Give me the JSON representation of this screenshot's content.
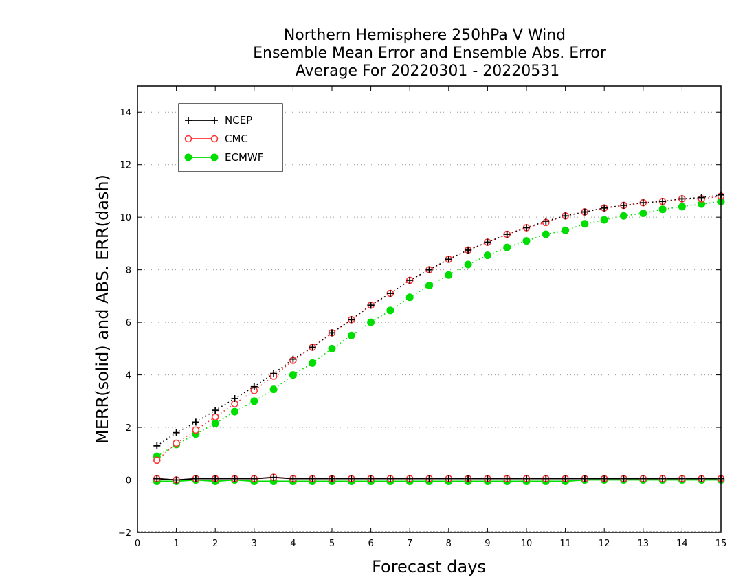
{
  "chart_data": {
    "type": "line",
    "title": [
      "Northern Hemisphere 250hPa V Wind",
      "Ensemble Mean Error and Ensemble Abs. Error",
      "Average For 20220301 - 20220531"
    ],
    "xlabel": "Forecast days",
    "ylabel": "MERR(solid) and ABS. ERR(dash)",
    "xlim": [
      0,
      15
    ],
    "ylim": [
      -2,
      15
    ],
    "xticks": [
      0,
      1,
      2,
      3,
      4,
      5,
      6,
      7,
      8,
      9,
      10,
      11,
      12,
      13,
      14,
      15
    ],
    "yticks": [
      -2,
      0,
      2,
      4,
      6,
      8,
      10,
      12,
      14
    ],
    "grid": "horizontal dotted",
    "legend_position": "top-left",
    "x": [
      0.5,
      1,
      1.5,
      2,
      2.5,
      3,
      3.5,
      4,
      4.5,
      5,
      5.5,
      6,
      6.5,
      7,
      7.5,
      8,
      8.5,
      9,
      9.5,
      10,
      10.5,
      11,
      11.5,
      12,
      12.5,
      13,
      13.5,
      14,
      14.5,
      15
    ],
    "series": [
      {
        "name": "NCEP",
        "color": "#000000",
        "marker": "plus",
        "abs_error": [
          1.3,
          1.8,
          2.2,
          2.65,
          3.1,
          3.55,
          4.05,
          4.6,
          5.05,
          5.6,
          6.1,
          6.65,
          7.1,
          7.6,
          8.0,
          8.4,
          8.75,
          9.05,
          9.35,
          9.6,
          9.85,
          10.05,
          10.2,
          10.35,
          10.45,
          10.55,
          10.6,
          10.7,
          10.75,
          10.85
        ],
        "mean_error": [
          0.05,
          0.0,
          0.05,
          0.05,
          0.05,
          0.05,
          0.1,
          0.05,
          0.05,
          0.05,
          0.05,
          0.05,
          0.05,
          0.05,
          0.05,
          0.05,
          0.05,
          0.05,
          0.05,
          0.05,
          0.05,
          0.05,
          0.05,
          0.05,
          0.05,
          0.05,
          0.05,
          0.05,
          0.05,
          0.05
        ]
      },
      {
        "name": "CMC",
        "color": "#ff3333",
        "marker": "open-circle",
        "abs_error": [
          0.75,
          1.4,
          1.9,
          2.4,
          2.9,
          3.4,
          3.95,
          4.55,
          5.05,
          5.6,
          6.1,
          6.65,
          7.1,
          7.6,
          8.0,
          8.4,
          8.75,
          9.05,
          9.35,
          9.6,
          9.8,
          10.05,
          10.2,
          10.35,
          10.45,
          10.55,
          10.6,
          10.7,
          10.7,
          10.8
        ],
        "mean_error": [
          0.05,
          0.0,
          0.05,
          0.05,
          0.05,
          0.05,
          0.1,
          0.05,
          0.05,
          0.05,
          0.05,
          0.05,
          0.05,
          0.05,
          0.05,
          0.05,
          0.05,
          0.05,
          0.05,
          0.05,
          0.05,
          0.05,
          0.05,
          0.05,
          0.05,
          0.05,
          0.05,
          0.05,
          0.05,
          0.05
        ]
      },
      {
        "name": "ECMWF",
        "color": "#00dd00",
        "marker": "filled-circle",
        "abs_error": [
          0.9,
          1.35,
          1.75,
          2.15,
          2.6,
          3.0,
          3.45,
          4.0,
          4.45,
          5.0,
          5.5,
          6.0,
          6.45,
          6.95,
          7.4,
          7.8,
          8.2,
          8.55,
          8.85,
          9.1,
          9.35,
          9.5,
          9.75,
          9.9,
          10.05,
          10.15,
          10.3,
          10.4,
          10.5,
          10.6
        ],
        "mean_error": [
          -0.05,
          -0.05,
          0.0,
          -0.05,
          0.0,
          -0.05,
          -0.05,
          -0.05,
          -0.05,
          -0.05,
          -0.05,
          -0.05,
          -0.05,
          -0.05,
          -0.05,
          -0.05,
          -0.05,
          -0.05,
          -0.05,
          -0.05,
          -0.05,
          -0.05,
          0.0,
          0.0,
          0.0,
          0.0,
          0.0,
          0.0,
          0.0,
          0.0
        ]
      }
    ]
  }
}
